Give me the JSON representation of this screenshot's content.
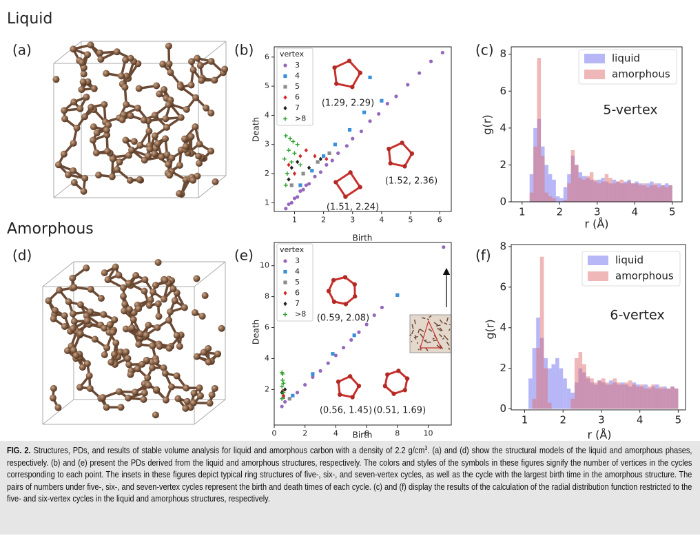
{
  "panels": {
    "liquid_title": "Liquid",
    "amorphous_title": "Amorphous",
    "a": "(a)",
    "d": "(d)"
  },
  "chart_data": [
    {
      "type": "scatter",
      "label": "(b)",
      "xlabel": "Birth",
      "ylabel": "Death",
      "legend_title": "vertex",
      "xlim": [
        0.3,
        6.4
      ],
      "ylim": [
        0.7,
        6.35
      ],
      "xticks": [
        1,
        2,
        3,
        4,
        5,
        6
      ],
      "yticks": [
        1,
        2,
        3,
        4,
        5,
        6
      ],
      "annotations": [
        "(1.29, 2.29)",
        "(1.52, 2.36)",
        "(1.51, 2.24)"
      ],
      "series": [
        {
          "name": "3",
          "color": "#9467bd",
          "marker": "circle",
          "x": [
            0.7,
            0.8,
            0.9,
            1.0,
            1.1,
            1.2,
            1.3,
            1.4,
            1.5,
            1.7,
            1.9,
            2.1,
            2.3,
            2.5,
            2.8,
            3.0,
            3.3,
            3.6,
            3.9,
            4.2,
            4.5,
            4.9,
            5.3,
            5.7,
            6.1
          ],
          "y": [
            0.8,
            0.95,
            1.0,
            1.15,
            1.2,
            1.4,
            1.45,
            1.6,
            1.65,
            1.9,
            2.05,
            2.3,
            2.45,
            2.7,
            2.95,
            3.2,
            3.45,
            3.8,
            4.05,
            4.4,
            4.65,
            5.05,
            5.45,
            5.85,
            6.15
          ]
        },
        {
          "name": "4",
          "color": "#3a8fd9",
          "marker": "square",
          "x": [
            1.2,
            1.6,
            2.0,
            2.4,
            2.9,
            3.4,
            3.6,
            4.0
          ],
          "y": [
            1.6,
            2.1,
            2.6,
            3.0,
            3.5,
            4.1,
            5.3,
            4.5
          ]
        },
        {
          "name": "5",
          "color": "#8c8c8c",
          "marker": "square",
          "x": [
            0.9,
            1.3,
            1.8,
            2.2
          ],
          "y": [
            1.6,
            2.0,
            2.4,
            2.7
          ]
        },
        {
          "name": "6",
          "color": "#d62728",
          "marker": "diamond",
          "x": [
            0.8,
            1.0,
            1.2,
            1.4,
            1.7,
            2.1
          ],
          "y": [
            2.3,
            2.0,
            2.6,
            2.8,
            2.6,
            2.5
          ]
        },
        {
          "name": "7",
          "color": "#222222",
          "marker": "diamond",
          "x": [
            0.8,
            0.9,
            1.1,
            1.5,
            1.9
          ],
          "y": [
            1.8,
            2.2,
            2.4,
            2.2,
            2.5
          ]
        },
        {
          "name": ">8",
          "color": "#2ca02c",
          "marker": "plus",
          "x": [
            0.65,
            0.7,
            0.75,
            0.8,
            0.85,
            0.9,
            1.0,
            1.1,
            1.2,
            0.7,
            0.95
          ],
          "y": [
            2.5,
            3.3,
            2.0,
            2.8,
            3.2,
            2.4,
            2.7,
            3.0,
            2.3,
            1.6,
            3.1
          ]
        }
      ]
    },
    {
      "type": "histogram",
      "label": "(c)",
      "xlabel": "r (Å)",
      "ylabel": "g(r)",
      "annotations": [
        "5-vertex"
      ],
      "xlim": [
        0.71,
        5.26
      ],
      "ylim": [
        0,
        8.4
      ],
      "xticks": [
        1,
        2,
        3,
        4,
        5
      ],
      "yticks": [
        0,
        2,
        4,
        6,
        8
      ],
      "bins": [
        1,
        1.1,
        1.2,
        1.3,
        1.4,
        1.5,
        1.6,
        1.7,
        1.8,
        1.9,
        2,
        2.1,
        2.2,
        2.3,
        2.4,
        2.5,
        2.6,
        2.7,
        2.8,
        2.9,
        3,
        3.1,
        3.2,
        3.3,
        3.4,
        3.5,
        3.6,
        3.7,
        3.8,
        3.9,
        4,
        4.1,
        4.2,
        4.3,
        4.4,
        4.5,
        4.6,
        4.7,
        4.8,
        4.9,
        5
      ],
      "series": [
        {
          "name": "liquid",
          "color": "#6f6ff0",
          "values": [
            0,
            0,
            1.5,
            4,
            4.5,
            3,
            2,
            1.5,
            1.2,
            0.3,
            0.2,
            0.8,
            1.5,
            2.5,
            2,
            1.6,
            1.4,
            1.3,
            1.2,
            1.1,
            1.2,
            1.3,
            1.1,
            1.0,
            1.2,
            1.1,
            1.0,
            1.1,
            1.2,
            1.0,
            1.1,
            1.0,
            0.9,
            1.0,
            1.1,
            0.9,
            1.0,
            0.9,
            1.0,
            0.9
          ]
        },
        {
          "name": "amorphous",
          "color": "#e07070",
          "values": [
            0,
            0,
            0.5,
            3,
            7.8,
            2.5,
            0.5,
            0.3,
            0.2,
            0,
            0,
            0.1,
            1,
            2.8,
            2,
            1.3,
            1.2,
            1.4,
            1.6,
            1.2,
            1.0,
            1.1,
            1.5,
            1.3,
            1.0,
            1.1,
            1.2,
            1.0,
            1.1,
            1.0,
            1.0,
            0.9,
            1.0,
            0.8,
            0.9,
            1.0,
            0.8,
            0.9,
            0.8,
            0.9
          ]
        }
      ]
    },
    {
      "type": "scatter",
      "label": "(e)",
      "xlabel": "Birth",
      "ylabel": "Death",
      "legend_title": "vertex",
      "xlim": [
        0,
        11.5
      ],
      "ylim": [
        -0.3,
        11.5
      ],
      "xticks": [
        0,
        2,
        4,
        6,
        8,
        10
      ],
      "yticks": [
        2,
        4,
        6,
        8,
        10
      ],
      "annotations": [
        "(0.59, 2.08)",
        "(0.56, 1.45)",
        "(0.51, 1.69)"
      ],
      "series": [
        {
          "name": "3",
          "color": "#9467bd",
          "marker": "circle",
          "x": [
            0.5,
            0.7,
            1,
            1.5,
            2,
            2.5,
            3,
            3.5,
            4,
            4.5,
            5,
            5.5,
            6,
            6.5,
            7,
            11
          ],
          "y": [
            0.9,
            1.2,
            1.4,
            1.8,
            2.3,
            2.8,
            3.2,
            3.7,
            4.2,
            4.7,
            5.2,
            5.7,
            6.2,
            6.8,
            7.3,
            11.2
          ]
        },
        {
          "name": "4",
          "color": "#3a8fd9",
          "marker": "square",
          "x": [
            1.2,
            2.5,
            3.8,
            5.2,
            8.0
          ],
          "y": [
            1.6,
            3.0,
            4.3,
            5.5,
            8.1
          ]
        },
        {
          "name": "5",
          "color": "#8c8c8c",
          "marker": "square",
          "x": [
            0.6,
            1.0
          ],
          "y": [
            1.5,
            1.4
          ]
        },
        {
          "name": "6",
          "color": "#d62728",
          "marker": "diamond",
          "x": [
            0.55,
            0.6
          ],
          "y": [
            1.9,
            1.6
          ]
        },
        {
          "name": "7",
          "color": "#222222",
          "marker": "diamond",
          "x": [
            0.5,
            0.7
          ],
          "y": [
            1.8,
            2.0
          ]
        },
        {
          "name": ">8",
          "color": "#2ca02c",
          "marker": "plus",
          "x": [
            0.5,
            0.5,
            0.55,
            0.55,
            0.6,
            0.6,
            0.5
          ],
          "y": [
            1.4,
            2.2,
            2.6,
            3.0,
            1.8,
            2.4,
            3.1
          ]
        }
      ]
    },
    {
      "type": "histogram",
      "label": "(f)",
      "xlabel": "r (Å)",
      "ylabel": "g(r)",
      "annotations": [
        "6-vertex"
      ],
      "xlim": [
        0.65,
        5.19
      ],
      "ylim": [
        -0.05,
        8.1
      ],
      "xticks": [
        1,
        2,
        3,
        4,
        5
      ],
      "yticks": [
        0,
        2,
        4,
        6,
        8
      ],
      "bins": [
        1,
        1.1,
        1.2,
        1.3,
        1.4,
        1.5,
        1.6,
        1.7,
        1.8,
        1.9,
        2,
        2.1,
        2.2,
        2.3,
        2.4,
        2.5,
        2.6,
        2.7,
        2.8,
        2.9,
        3,
        3.1,
        3.2,
        3.3,
        3.4,
        3.5,
        3.6,
        3.7,
        3.8,
        3.9,
        4,
        4.1,
        4.2,
        4.3,
        4.4,
        4.5,
        4.6,
        4.7,
        4.8,
        4.9,
        5
      ],
      "series": [
        {
          "name": "liquid",
          "color": "#6f6ff0",
          "values": [
            0,
            1.5,
            3,
            4.5,
            3.5,
            2.5,
            2,
            2.2,
            2.5,
            2,
            1.5,
            1,
            0.8,
            1.3,
            2,
            1.8,
            1.5,
            1.3,
            1.2,
            1.4,
            1.3,
            1.2,
            1.4,
            1.3,
            1.2,
            1.3,
            1.2,
            1.1,
            1.3,
            1.2,
            1.1,
            1.2,
            1.0,
            1.1,
            1.2,
            1.0,
            1.1,
            1.0,
            1.1,
            1.0
          ]
        },
        {
          "name": "amorphous",
          "color": "#e07070",
          "values": [
            0,
            0,
            0.5,
            3,
            7.5,
            2,
            0.3,
            0,
            0,
            0,
            0,
            0,
            0.5,
            2.5,
            2.8,
            2.2,
            1.6,
            1.5,
            1.3,
            1.4,
            1.5,
            1.3,
            1.2,
            1.5,
            1.3,
            1.2,
            1.3,
            1.4,
            1.2,
            1.1,
            1.2,
            1.0,
            1.1,
            1.2,
            1.0,
            1.1,
            1.0,
            1.0,
            1.1,
            1.0
          ]
        }
      ]
    }
  ],
  "caption": {
    "label": "FIG. 2.",
    "text": "Structures, PDs, and results of stable volume analysis for liquid and amorphous carbon with a density of 2.2 g/cm",
    "superscript": "3",
    "text_after": ". (a) and (d) show the structural models of the liquid and amorphous phases, respectively. (b) and (e) present the PDs derived from the liquid and amorphous structures, respectively. The colors and styles of the symbols in these figures signify the number of vertices in the cycles corresponding to each point. The insets in these figures depict typical ring structures of five-, six-, and seven-vertex cycles, as well as the cycle with the largest birth time in the amorphous structure. The pairs of numbers under five-, six-, and seven-vertex cycles represent the birth and death times of each cycle. (c) and (f) display the results of the calculation of the radial distribution function restricted to the five- and six-vertex cycles in the liquid and amorphous structures, respectively."
  }
}
